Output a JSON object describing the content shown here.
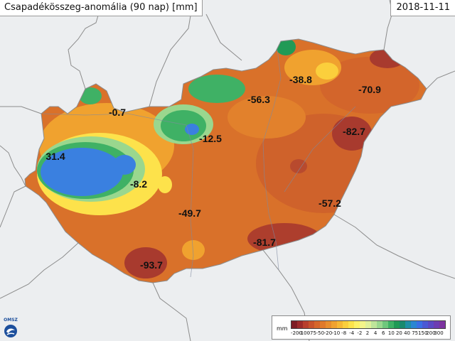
{
  "header": {
    "title": "Csapadékösszeg-anomália (90 nap) [mm]",
    "date": "2018-11-11"
  },
  "map_labels": [
    "-0.7",
    "31.4",
    "-8.2",
    "-12.5",
    "-56.3",
    "-38.8",
    "-70.9",
    "-82.7",
    "-57.2",
    "-49.7",
    "-81.7",
    "-93.7"
  ],
  "legend": {
    "unit": "mm",
    "colors": [
      "#7d1d24",
      "#9c2b2a",
      "#b83f2d",
      "#c8532b",
      "#d6662a",
      "#e07a2a",
      "#e88e2d",
      "#f0a22f",
      "#f6b834",
      "#fbcf3c",
      "#fde24b",
      "#fdf066",
      "#f4f58a",
      "#dff09a",
      "#bfe59a",
      "#9ad78e",
      "#6fc77c",
      "#3fb165",
      "#219a56",
      "#198a6e",
      "#1f8fa5",
      "#2a86d2",
      "#3a6fe4",
      "#4a59d4",
      "#5a49c4",
      "#6c3db2",
      "#7d33a0"
    ],
    "ticks": [
      "-200",
      "-100",
      "-75",
      "-50",
      "-20",
      "-10",
      "-8",
      "-4",
      "-2",
      "2",
      "4",
      "6",
      "10",
      "20",
      "40",
      "75",
      "150",
      "200",
      "300"
    ]
  },
  "logo": {
    "text": "OMSZ"
  }
}
